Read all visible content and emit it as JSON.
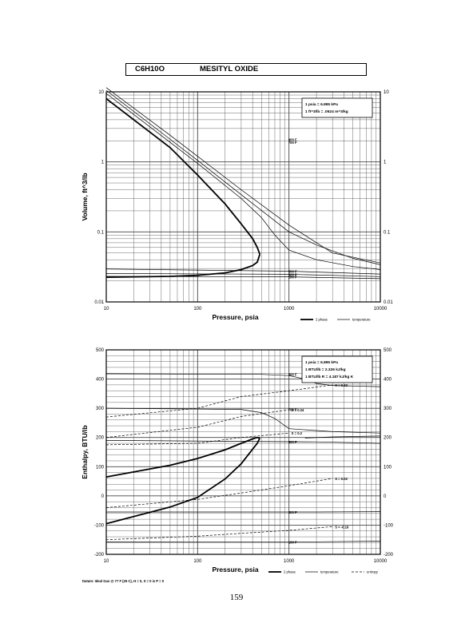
{
  "title": {
    "formula": "C6H10O",
    "compound": "MESITYL OXIDE"
  },
  "page_number": "159",
  "colors": {
    "ink": "#000000",
    "grid": "#444444",
    "background": "#ffffff"
  },
  "chart_data": [
    {
      "type": "line",
      "x_scale": "log",
      "y_scale": "log",
      "xlabel": "Pressure,  psia",
      "ylabel": "Volume, ft^3/lb",
      "xlim": [
        10,
        10000
      ],
      "ylim": [
        0.01,
        10
      ],
      "x_ticks": [
        "10",
        "100",
        "1000",
        "10000"
      ],
      "y_ticks": [
        "10",
        "1",
        "0.1",
        "0.01"
      ],
      "grid": true,
      "conversion_box": [
        "1 psia = 6.895 kPa",
        "1 ft^3/lb = .0624 m^3/kg"
      ],
      "legend": [
        "2 phase",
        "temperature"
      ],
      "legend_position": "bottom-right",
      "series": [
        {
          "kind": "2 phase",
          "x": [
            10,
            50,
            100,
            200,
            300,
            400,
            450,
            480
          ],
          "y": [
            8,
            1.6,
            0.65,
            0.25,
            0.13,
            0.08,
            0.06,
            0.048
          ]
        },
        {
          "kind": "2 phase",
          "x": [
            10,
            50,
            100,
            200,
            300,
            400,
            450,
            480
          ],
          "y": [
            0.0225,
            0.0232,
            0.024,
            0.026,
            0.029,
            0.033,
            0.037,
            0.048
          ]
        },
        {
          "kind": "temperature",
          "label": "700 F",
          "x": [
            10,
            50,
            100,
            300,
            500,
            700,
            1000,
            2000,
            5000,
            10000
          ],
          "y": [
            9.5,
            1.9,
            0.95,
            0.3,
            0.16,
            0.09,
            0.055,
            0.04,
            0.032,
            0.029
          ]
        },
        {
          "kind": "temperature",
          "label": "900 F",
          "x": [
            10,
            50,
            100,
            300,
            1000,
            2000,
            5000,
            10000
          ],
          "y": [
            10.5,
            2.1,
            1.05,
            0.34,
            0.1,
            0.065,
            0.042,
            0.034
          ]
        },
        {
          "kind": "temperature",
          "x": [
            10,
            50,
            100,
            300,
            1000,
            3000,
            10000
          ],
          "y": [
            11.5,
            2.4,
            1.2,
            0.4,
            0.125,
            0.05,
            0.036
          ]
        },
        {
          "kind": "temperature",
          "label": "500 F",
          "x": [
            10,
            1000,
            10000
          ],
          "y": [
            0.0295,
            0.0275,
            0.025
          ]
        },
        {
          "kind": "temperature",
          "label": "300 F",
          "x": [
            10,
            1000,
            10000
          ],
          "y": [
            0.0255,
            0.0248,
            0.023
          ]
        },
        {
          "kind": "temperature",
          "label": "100 F",
          "x": [
            10,
            1000,
            10000
          ],
          "y": [
            0.0232,
            0.0228,
            0.0215
          ]
        }
      ]
    },
    {
      "type": "line",
      "x_scale": "log",
      "y_scale": "linear",
      "xlabel": "Pressure,  psia",
      "ylabel": "Enthalpy, BTU/lb",
      "xlim": [
        10,
        10000
      ],
      "ylim": [
        -200,
        500
      ],
      "x_ticks": [
        "10",
        "100",
        "1000",
        "10000"
      ],
      "y_ticks": [
        "500",
        "400",
        "300",
        "200",
        "100",
        "0",
        "-100",
        "-200"
      ],
      "grid": true,
      "conversion_box": [
        "1 psia = 6.895 kPa",
        "1 BTU/lb = 2.326 kJ/kg",
        "1 BTU/lb R = 4.187 kJ/kg K"
      ],
      "legend": [
        "2 phase",
        "temperature",
        "entropy"
      ],
      "legend_position": "bottom-right",
      "footnote": "Datum: Ideal Gas @ 77 F (25 C), H = 0, S = 0 is P = 0",
      "series": [
        {
          "kind": "2 phase",
          "x": [
            10,
            50,
            100,
            200,
            300,
            400,
            450,
            480
          ],
          "y": [
            65,
            105,
            128,
            158,
            180,
            195,
            200,
            198
          ]
        },
        {
          "kind": "2 phase",
          "x": [
            10,
            50,
            100,
            200,
            300,
            400,
            450,
            480
          ],
          "y": [
            -95,
            -38,
            -5,
            58,
            110,
            160,
            180,
            198
          ]
        },
        {
          "kind": "temperature",
          "label": "900 F",
          "x": [
            10,
            500,
            1000,
            1500,
            2000,
            3000,
            5000,
            10000
          ],
          "y": [
            418,
            416,
            412,
            400,
            385,
            378,
            376,
            374
          ]
        },
        {
          "kind": "temperature",
          "label": "700 F",
          "x": [
            10,
            300,
            500,
            700,
            1000,
            3000,
            10000
          ],
          "y": [
            300,
            296,
            285,
            265,
            230,
            220,
            215
          ]
        },
        {
          "kind": "temperature",
          "x": [
            1500,
            3000,
            10000
          ],
          "y": [
            198,
            202,
            205
          ]
        },
        {
          "kind": "temperature",
          "label": "500 F",
          "x": [
            10,
            2000,
            10000
          ],
          "y": [
            190,
            185,
            180
          ]
        },
        {
          "kind": "temperature",
          "label": "300 F",
          "x": [
            10,
            2000,
            10000
          ],
          "y": [
            -55,
            -55,
            -54
          ]
        },
        {
          "kind": "temperature",
          "label": "100 F",
          "x": [
            10,
            2000,
            10000
          ],
          "y": [
            -158,
            -157,
            -155
          ]
        },
        {
          "kind": "entropy",
          "label": "S = 0.33",
          "x": [
            10,
            100,
            300,
            1000,
            3000
          ],
          "y": [
            270,
            300,
            340,
            360,
            380
          ]
        },
        {
          "kind": "entropy",
          "label": "S = 0.24",
          "x": [
            10,
            100,
            300,
            1000
          ],
          "y": [
            200,
            235,
            272,
            295
          ]
        },
        {
          "kind": "entropy",
          "label": "S = 0.2",
          "x": [
            10,
            100,
            300,
            1000
          ],
          "y": [
            175,
            180,
            200,
            215
          ]
        },
        {
          "kind": "entropy",
          "label": "S = 0.02",
          "x": [
            10,
            100,
            300,
            1000,
            3000
          ],
          "y": [
            -40,
            -12,
            10,
            35,
            60
          ]
        },
        {
          "kind": "entropy",
          "label": "S = -0.16",
          "x": [
            10,
            100,
            300,
            1000,
            3000
          ],
          "y": [
            -150,
            -138,
            -128,
            -118,
            -105
          ]
        }
      ]
    }
  ]
}
